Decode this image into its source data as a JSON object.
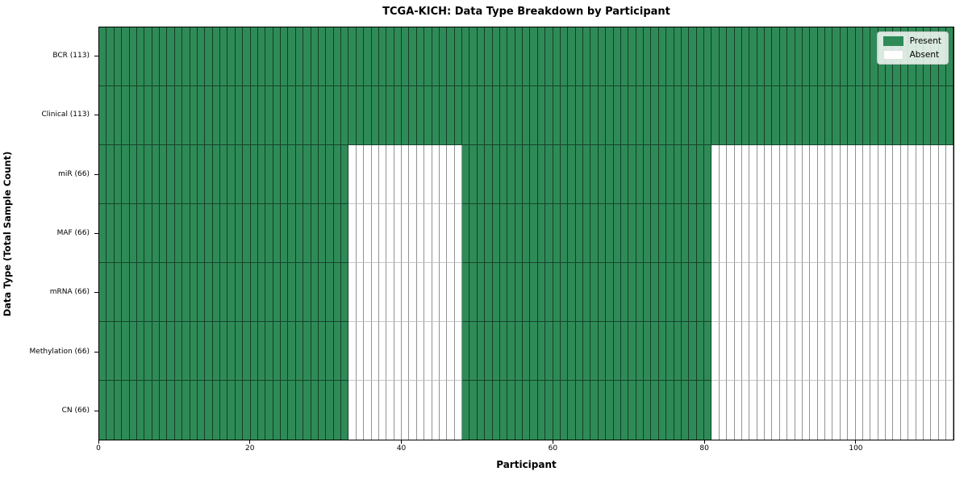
{
  "chart_data": {
    "type": "heatmap",
    "title": "TCGA-KICH: Data Type Breakdown by Participant",
    "xlabel": "Participant",
    "ylabel": "Data Type (Total Sample Count)",
    "n_participants": 113,
    "x_ticks": [
      0,
      20,
      40,
      60,
      80,
      100
    ],
    "rows": [
      {
        "label": "BCR (113)",
        "total": 113,
        "present_ranges": [
          [
            0,
            112
          ]
        ]
      },
      {
        "label": "Clinical (113)",
        "total": 113,
        "present_ranges": [
          [
            0,
            112
          ]
        ]
      },
      {
        "label": "miR (66)",
        "total": 66,
        "present_ranges": [
          [
            0,
            32
          ],
          [
            48,
            80
          ]
        ]
      },
      {
        "label": "MAF (66)",
        "total": 66,
        "present_ranges": [
          [
            0,
            32
          ],
          [
            48,
            80
          ]
        ]
      },
      {
        "label": "mRNA (66)",
        "total": 66,
        "present_ranges": [
          [
            0,
            32
          ],
          [
            48,
            80
          ]
        ]
      },
      {
        "label": "Methylation (66)",
        "total": 66,
        "present_ranges": [
          [
            0,
            32
          ],
          [
            48,
            80
          ]
        ]
      },
      {
        "label": "CN (66)",
        "total": 66,
        "present_ranges": [
          [
            0,
            32
          ],
          [
            48,
            80
          ]
        ]
      }
    ],
    "legend": {
      "position": "upper right",
      "entries": [
        {
          "label": "Present",
          "color": "#2e8b57"
        },
        {
          "label": "Absent",
          "color": "#ffffff"
        }
      ]
    },
    "colors": {
      "present": "#2e8b57",
      "absent": "#ffffff",
      "spine": "#000000"
    }
  }
}
